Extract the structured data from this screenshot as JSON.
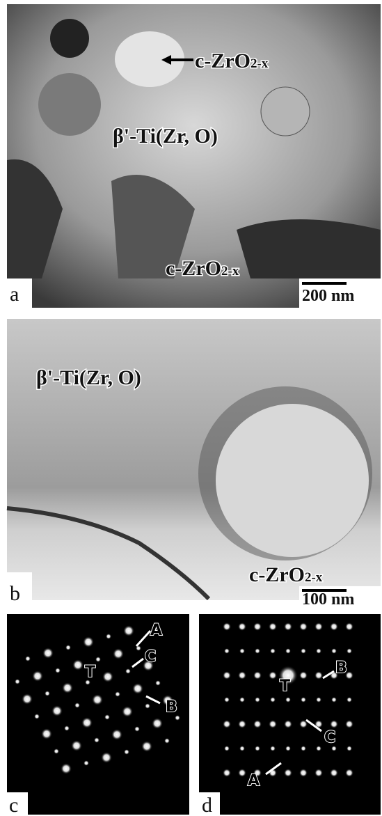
{
  "panels": [
    {
      "label": "a",
      "annotations": [
        {
          "text": "c-ZrO",
          "subscript": "2-x"
        },
        {
          "text": "β'-Ti(Zr, O)"
        },
        {
          "text": "c-ZrO",
          "subscript": "2-x"
        }
      ],
      "scale_bar": "200 nm"
    },
    {
      "label": "b",
      "annotations": [
        {
          "text": "β'-Ti(Zr, O)"
        },
        {
          "text": "c-ZrO",
          "subscript": "2-x"
        }
      ],
      "scale_bar": "100 nm"
    },
    {
      "label": "c",
      "spot_labels": [
        "A",
        "C",
        "T",
        "B"
      ]
    },
    {
      "label": "d",
      "spot_labels": [
        "B",
        "T",
        "C",
        "A"
      ]
    }
  ]
}
